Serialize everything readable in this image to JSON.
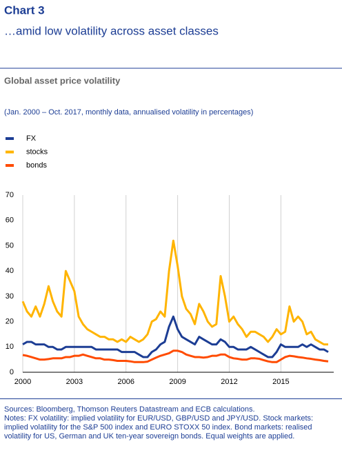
{
  "header": {
    "title": "Chart 3",
    "subtitle": "…amid low volatility across asset classes"
  },
  "chart_data": {
    "type": "line",
    "title": "Global asset price volatility",
    "subtitle": "(Jan. 2000 – Oct. 2017, monthly data, annualised volatility in percentages)",
    "x": [
      2000,
      2000.25,
      2000.5,
      2000.75,
      2001,
      2001.25,
      2001.5,
      2001.75,
      2002,
      2002.25,
      2002.5,
      2002.75,
      2003,
      2003.25,
      2003.5,
      2003.75,
      2004,
      2004.25,
      2004.5,
      2004.75,
      2005,
      2005.25,
      2005.5,
      2005.75,
      2006,
      2006.25,
      2006.5,
      2006.75,
      2007,
      2007.25,
      2007.5,
      2007.75,
      2008,
      2008.25,
      2008.5,
      2008.75,
      2009,
      2009.25,
      2009.5,
      2009.75,
      2010,
      2010.25,
      2010.5,
      2010.75,
      2011,
      2011.25,
      2011.5,
      2011.75,
      2012,
      2012.25,
      2012.5,
      2012.75,
      2013,
      2013.25,
      2013.5,
      2013.75,
      2014,
      2014.25,
      2014.5,
      2014.75,
      2015,
      2015.25,
      2015.5,
      2015.75,
      2016,
      2016.25,
      2016.5,
      2016.75,
      2017,
      2017.25,
      2017.5,
      2017.75
    ],
    "series": [
      {
        "name": "FX",
        "color": "#1c3d94",
        "values": [
          11,
          12,
          12,
          11,
          11,
          11,
          10,
          10,
          9,
          9,
          10,
          10,
          10,
          10,
          10,
          10,
          10,
          9,
          9,
          9,
          9,
          9,
          9,
          8,
          8,
          8,
          8,
          7,
          6,
          6,
          8,
          9,
          11,
          12,
          18,
          22,
          17,
          14,
          13,
          12,
          11,
          14,
          13,
          12,
          11,
          11,
          13,
          12,
          10,
          10,
          9,
          9,
          9,
          10,
          9,
          8,
          7,
          6,
          6,
          8,
          11,
          10,
          10,
          10,
          10,
          11,
          10,
          11,
          10,
          9,
          9,
          8
        ]
      },
      {
        "name": "stocks",
        "color": "#ffb400",
        "values": [
          28,
          24,
          22,
          26,
          22,
          27,
          34,
          28,
          24,
          22,
          40,
          36,
          32,
          22,
          19,
          17,
          16,
          15,
          14,
          14,
          13,
          13,
          12,
          13,
          12,
          14,
          13,
          12,
          13,
          15,
          20,
          21,
          24,
          22,
          40,
          52,
          42,
          30,
          25,
          23,
          19,
          27,
          24,
          20,
          18,
          19,
          38,
          30,
          20,
          22,
          19,
          17,
          14,
          16,
          16,
          15,
          14,
          12,
          14,
          17,
          15,
          16,
          26,
          20,
          22,
          20,
          15,
          16,
          13,
          12,
          11,
          11
        ]
      },
      {
        "name": "bonds",
        "color": "#ff4b00",
        "values": [
          6.8,
          6.5,
          6,
          5.5,
          5,
          5,
          5.2,
          5.5,
          5.5,
          5.5,
          6,
          6,
          6.5,
          6.5,
          7,
          6.5,
          6,
          5.5,
          5.5,
          5,
          5,
          4.8,
          4.5,
          4.5,
          4.5,
          4.3,
          4,
          4,
          4,
          4.2,
          5,
          5.8,
          6.5,
          7,
          7.5,
          8.5,
          8.5,
          8,
          7,
          6.5,
          6,
          6,
          5.8,
          6,
          6.5,
          6.5,
          7,
          7,
          6,
          5.5,
          5.3,
          5,
          5,
          5.5,
          5.5,
          5.3,
          4.8,
          4.3,
          4,
          4,
          5,
          6,
          6.5,
          6.3,
          6,
          5.8,
          5.5,
          5.3,
          5,
          4.8,
          4.5,
          4.3
        ]
      }
    ],
    "xlim": [
      2000,
      2017.83
    ],
    "xticks": [
      2000,
      2003,
      2006,
      2009,
      2012,
      2015
    ],
    "ylim": [
      0,
      70
    ],
    "yticks": [
      0,
      10,
      20,
      30,
      40,
      50,
      60,
      70
    ],
    "grid": true
  },
  "footer": {
    "sources": "Sources: Bloomberg, Thomson Reuters Datastream and ECB calculations.",
    "notes": "Notes: FX volatility: implied volatility for EUR/USD, GBP/USD and JPY/USD. Stock markets: implied volatility for the S&P 500 index and EURO STOXX 50 index. Bond markets: realised volatility for US, German and UK ten-year sovereign bonds. Equal weights are applied."
  }
}
